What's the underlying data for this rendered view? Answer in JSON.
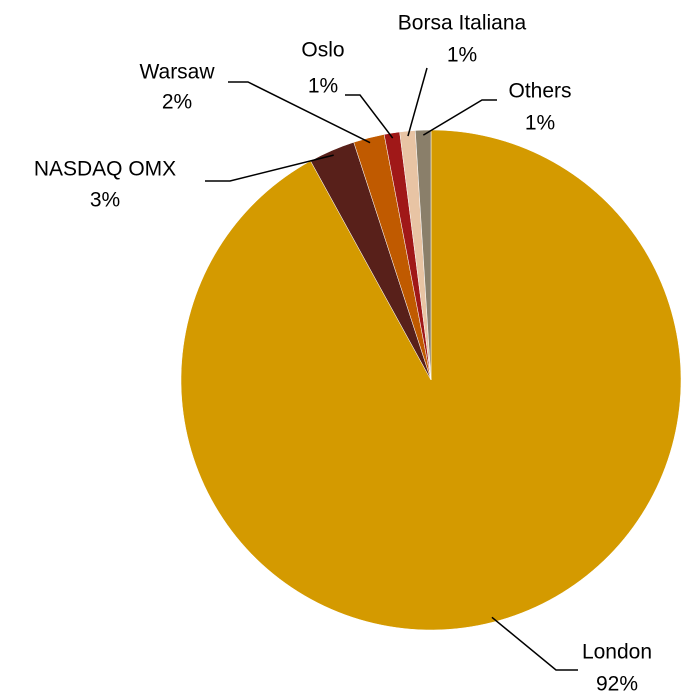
{
  "chart_data": {
    "type": "pie",
    "categories": [
      "London",
      "NASDAQ OMX",
      "Warsaw",
      "Oslo",
      "Borsa Italiana",
      "Others"
    ],
    "values": [
      92,
      3,
      2,
      1,
      1,
      1
    ],
    "value_labels": [
      "92%",
      "3%",
      "2%",
      "1%",
      "1%",
      "1%"
    ],
    "colors": [
      "#D49A00",
      "#58201A",
      "#C05A00",
      "#A01818",
      "#E8C4A4",
      "#8A7F6A"
    ]
  }
}
